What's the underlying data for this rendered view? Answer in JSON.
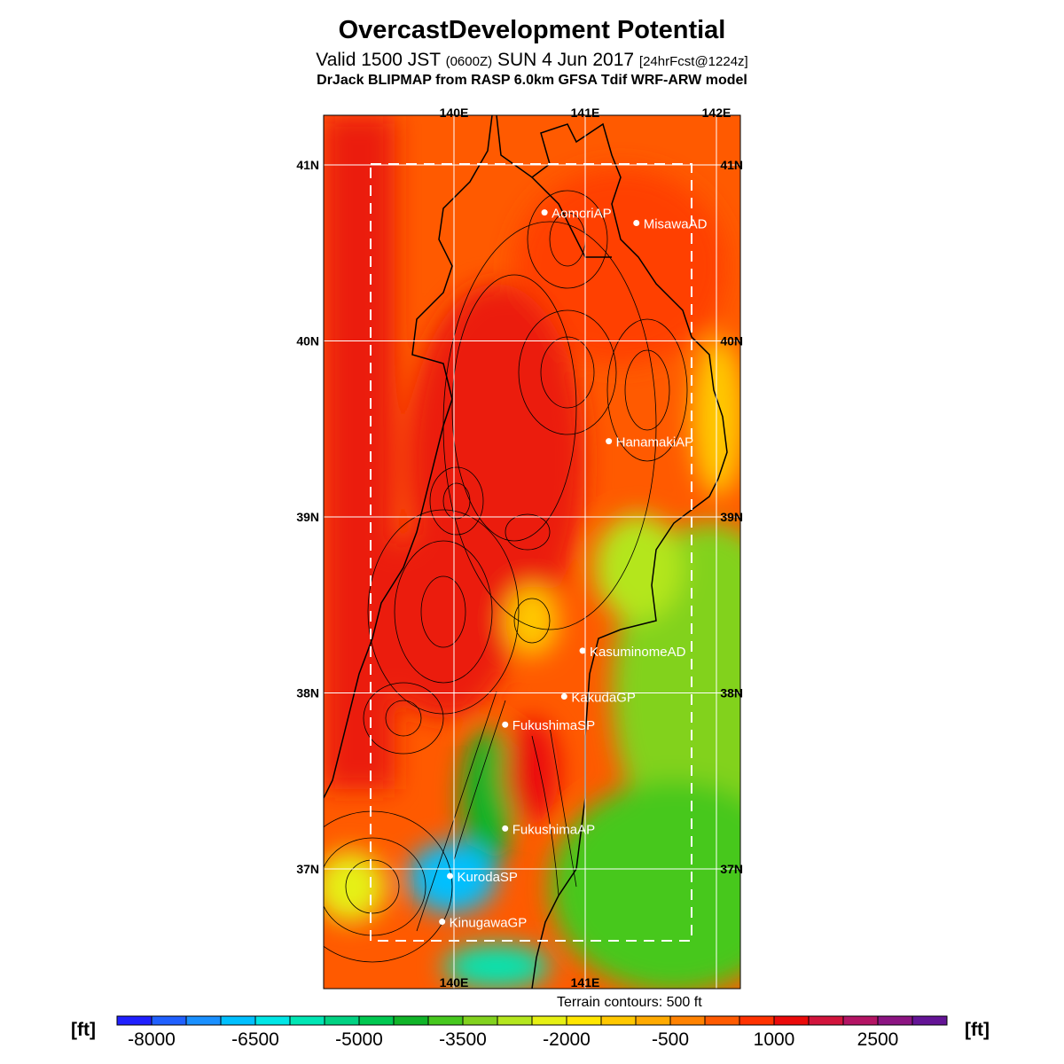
{
  "header": {
    "title": "OvercastDevelopment Potential",
    "valid_prefix": "Valid 1500 JST",
    "valid_utc": "(0600Z)",
    "valid_date": "SUN 4 Jun 2017",
    "forecast": "[24hrFcst@1224z]",
    "model": "DrJack BLIPMAP from RASP 6.0km GFSA Tdif WRF-ARW model"
  },
  "map": {
    "lon_labels": [
      "140E",
      "141E",
      "142E"
    ],
    "lat_labels": [
      "41N",
      "40N",
      "39N",
      "38N",
      "37N"
    ],
    "stations": [
      {
        "name": "AomoriAP",
        "lon": 140.69,
        "lat": 40.73
      },
      {
        "name": "MisawaAD",
        "lon": 141.39,
        "lat": 40.67
      },
      {
        "name": "HanamakiAP",
        "lon": 141.18,
        "lat": 39.43
      },
      {
        "name": "KasuminomeAD",
        "lon": 140.98,
        "lat": 38.24
      },
      {
        "name": "KakudaGP",
        "lon": 140.84,
        "lat": 37.98
      },
      {
        "name": "FukushimaSP",
        "lon": 140.39,
        "lat": 37.82
      },
      {
        "name": "FukushimaAP",
        "lon": 140.39,
        "lat": 37.23
      },
      {
        "name": "KurodaSP",
        "lon": 139.97,
        "lat": 36.96
      },
      {
        "name": "KinugawaGP",
        "lon": 139.91,
        "lat": 36.7
      }
    ],
    "terrain_note": "Terrain contours: 500 ft"
  },
  "colorbar": {
    "unit": "[ft]",
    "tick_labels": [
      "-8000",
      "-6500",
      "-5000",
      "-3500",
      "-2000",
      "-500",
      "1000",
      "2500"
    ],
    "colors": [
      "#2020ff",
      "#2060ff",
      "#1a90ff",
      "#00c0ff",
      "#00e6e6",
      "#00e6b4",
      "#00d282",
      "#00c850",
      "#10b428",
      "#46c81e",
      "#82d21e",
      "#b4e61e",
      "#e6f014",
      "#ffe600",
      "#ffc800",
      "#ffaa00",
      "#ff8200",
      "#ff5a00",
      "#ff3200",
      "#eb0a0a",
      "#d2143c",
      "#b41464",
      "#8c1482",
      "#641496"
    ]
  }
}
